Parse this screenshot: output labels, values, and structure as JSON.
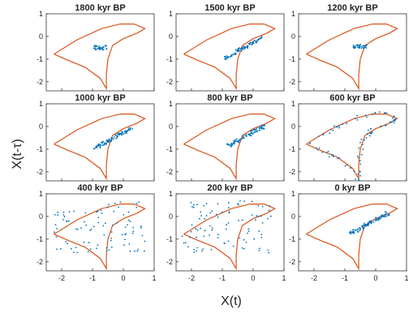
{
  "figure": {
    "xlabel": "X(t)",
    "ylabel": "X(t-τ)",
    "x_ticks": [
      -2,
      -1,
      0,
      1
    ],
    "y_ticks": [
      1,
      0,
      -1,
      -2
    ],
    "xlim": [
      -2.5,
      1.0
    ],
    "ylim": [
      -2.4,
      1.0
    ],
    "attractor_color": "#d95319",
    "data_color": "#0072bd"
  },
  "chart_data": [
    {
      "type": "scatter",
      "title": "1800 kyr BP",
      "pattern": "cluster",
      "center": [
        -0.75,
        -0.5
      ]
    },
    {
      "type": "scatter",
      "title": "1500 kyr BP",
      "pattern": "diagonal",
      "center": [
        -0.3,
        -0.5
      ]
    },
    {
      "type": "scatter",
      "title": "1200 kyr BP",
      "pattern": "cluster",
      "center": [
        -0.5,
        -0.45
      ]
    },
    {
      "type": "scatter",
      "title": "1000 kyr BP",
      "pattern": "diagonal",
      "center": [
        -0.3,
        -0.5
      ]
    },
    {
      "type": "scatter",
      "title": "800 kyr BP",
      "pattern": "diagonal",
      "center": [
        -0.2,
        -0.4
      ]
    },
    {
      "type": "scatter",
      "title": "600 kyr BP",
      "pattern": "ring",
      "center": [
        -0.9,
        -0.5
      ]
    },
    {
      "type": "scatter",
      "title": "400 kyr BP",
      "pattern": "spread",
      "center": [
        -0.3,
        -0.2
      ]
    },
    {
      "type": "scatter",
      "title": "200 kyr BP",
      "pattern": "spread",
      "center": [
        -0.4,
        -0.3
      ]
    },
    {
      "type": "scatter",
      "title": "0 kyr BP",
      "pattern": "diagonal",
      "center": [
        -0.2,
        -0.3
      ]
    }
  ]
}
